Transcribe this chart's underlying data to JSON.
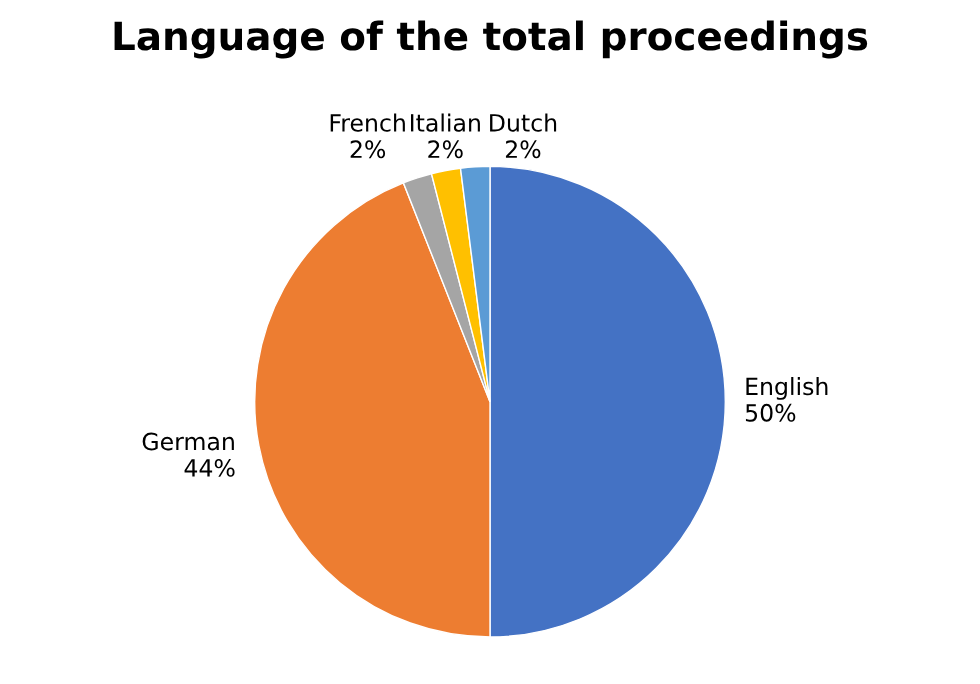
{
  "chart_data": {
    "type": "pie",
    "title": "Language of the total proceedings",
    "categories": [
      "English",
      "German",
      "French",
      "Italian",
      "Dutch"
    ],
    "values": [
      50,
      44,
      2,
      2,
      2
    ],
    "colors": [
      "#4472c4",
      "#ed7d31",
      "#a5a5a5",
      "#ffc000",
      "#5b9bd5"
    ],
    "value_labels": [
      "50%",
      "44%",
      "2%",
      "2%",
      "2%"
    ],
    "legend": false
  }
}
